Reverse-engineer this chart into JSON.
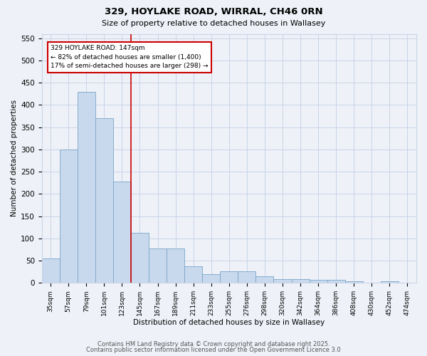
{
  "title1": "329, HOYLAKE ROAD, WIRRAL, CH46 0RN",
  "title2": "Size of property relative to detached houses in Wallasey",
  "xlabel": "Distribution of detached houses by size in Wallasey",
  "ylabel_text": "Number of detached properties",
  "categories": [
    "35sqm",
    "57sqm",
    "79sqm",
    "101sqm",
    "123sqm",
    "145sqm",
    "167sqm",
    "189sqm",
    "211sqm",
    "233sqm",
    "255sqm",
    "276sqm",
    "298sqm",
    "320sqm",
    "342sqm",
    "364sqm",
    "386sqm",
    "408sqm",
    "430sqm",
    "452sqm",
    "474sqm"
  ],
  "values": [
    55,
    300,
    430,
    370,
    228,
    113,
    78,
    78,
    38,
    20,
    26,
    26,
    15,
    9,
    9,
    7,
    6,
    4,
    0,
    4,
    0
  ],
  "bar_color": "#c9d9ed",
  "bar_edge_color": "#7aa4c8",
  "ref_line_label": "329 HOYLAKE ROAD: 147sqm",
  "annotation_line1": "← 82% of detached houses are smaller (1,400)",
  "annotation_line2": "17% of semi-detached houses are larger (298) →",
  "annotation_box_color": "#ffffff",
  "annotation_box_edge_color": "#cc0000",
  "ref_line_color": "#cc0000",
  "ylim": [
    0,
    560
  ],
  "yticks": [
    0,
    50,
    100,
    150,
    200,
    250,
    300,
    350,
    400,
    450,
    500,
    550
  ],
  "footer1": "Contains HM Land Registry data © Crown copyright and database right 2025.",
  "footer2": "Contains public sector information licensed under the Open Government Licence 3.0",
  "background_color": "#eef2f8",
  "grid_color": "#c8d4e8"
}
